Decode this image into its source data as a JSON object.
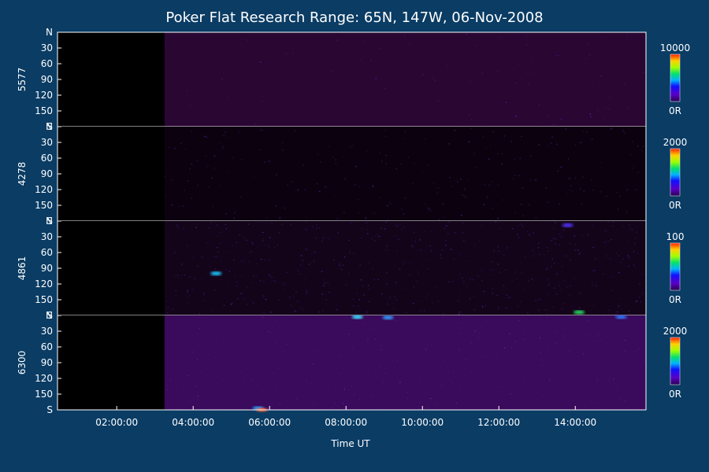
{
  "chart_data": {
    "type": "heatmap",
    "title": "Poker Flat Research Range: 65N, 147W, 06-Nov-2008",
    "xlabel": "Time UT",
    "x_ticks": [
      "02:00:00",
      "04:00:00",
      "06:00:00",
      "08:00:00",
      "10:00:00",
      "12:00:00",
      "14:00:00"
    ],
    "x_tick_hours": [
      2,
      4,
      6,
      8,
      10,
      12,
      14
    ],
    "x_range_hours": [
      0.45,
      15.85
    ],
    "data_start_hour": 3.25,
    "y_ticks": [
      "N",
      "30",
      "60",
      "90",
      "120",
      "150",
      "S"
    ],
    "panels": [
      {
        "wavelength": "5577",
        "colorbar_max": "10000",
        "colorbar_min": "0R",
        "base_color": "#2a0633",
        "noise": 0.1,
        "features": []
      },
      {
        "wavelength": "4278",
        "colorbar_max": "2000",
        "colorbar_min": "0R",
        "base_color": "#0c020f",
        "noise": 0.25,
        "features": []
      },
      {
        "wavelength": "4861",
        "colorbar_max": "100",
        "colorbar_min": "0R",
        "base_color": "#14041a",
        "noise": 0.55,
        "features": [
          {
            "hour": 4.6,
            "angle": 100,
            "color": "#1ec8ff"
          },
          {
            "hour": 14.1,
            "angle": 174,
            "color": "#28e060"
          },
          {
            "hour": 13.8,
            "angle": 8,
            "color": "#5030ff"
          }
        ]
      },
      {
        "wavelength": "6300",
        "colorbar_max": "2000",
        "colorbar_min": "0R",
        "base_color": "#3a0a5c",
        "noise": 0.35,
        "features": [
          {
            "hour": 8.3,
            "angle": 3,
            "color": "#3fe0ff"
          },
          {
            "hour": 9.1,
            "angle": 4,
            "color": "#30a0ff"
          },
          {
            "hour": 15.2,
            "angle": 3,
            "color": "#2f7bff"
          },
          {
            "hour": 5.7,
            "angle": 177,
            "color": "#2aa0ff"
          },
          {
            "hour": 5.8,
            "angle": 180,
            "color": "#ff6030"
          }
        ]
      }
    ]
  }
}
